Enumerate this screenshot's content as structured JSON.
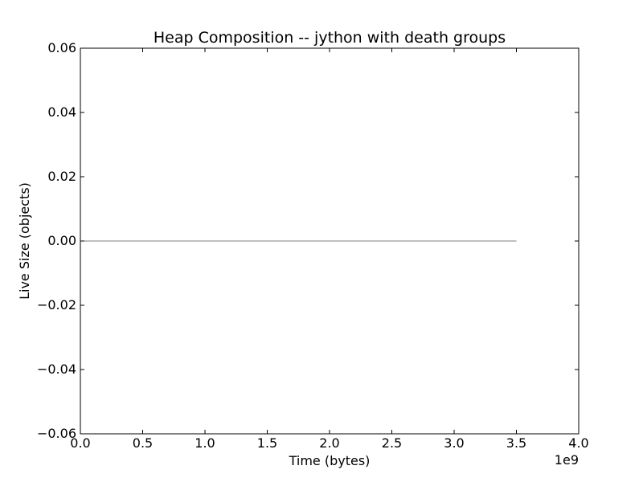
{
  "chart_data": {
    "type": "line",
    "title": "Heap Composition -- jython with death groups",
    "xlabel": "Time (bytes)",
    "ylabel": "Live Size (objects)",
    "x_offset_label": "1e9",
    "xlim": [
      0.0,
      4.0
    ],
    "ylim": [
      -0.06,
      0.06
    ],
    "xticks": [
      0.0,
      0.5,
      1.0,
      1.5,
      2.0,
      2.5,
      3.0,
      3.5,
      4.0
    ],
    "xtick_labels": [
      "0.0",
      "0.5",
      "1.0",
      "1.5",
      "2.0",
      "2.5",
      "3.0",
      "3.5",
      "4.0"
    ],
    "yticks": [
      -0.06,
      -0.04,
      -0.02,
      0.0,
      0.02,
      0.04,
      0.06
    ],
    "ytick_labels": [
      "−0.06",
      "−0.04",
      "−0.02",
      "0.00",
      "0.02",
      "0.04",
      "0.06"
    ],
    "grid": false,
    "legend": "none",
    "series": [
      {
        "x": [
          0.0,
          3.5
        ],
        "y": [
          0.0,
          0.0
        ],
        "color": "#1f77b4"
      },
      {
        "x": [
          0.0,
          3.5
        ],
        "y": [
          0.0,
          0.0
        ],
        "color": "#2ca02c"
      },
      {
        "x": [
          0.0,
          3.5
        ],
        "y": [
          0.0,
          0.0
        ],
        "color": "#17becf"
      },
      {
        "x": [
          0.0,
          3.5
        ],
        "y": [
          0.0,
          0.0
        ],
        "color": "#7f7f7f"
      }
    ]
  }
}
